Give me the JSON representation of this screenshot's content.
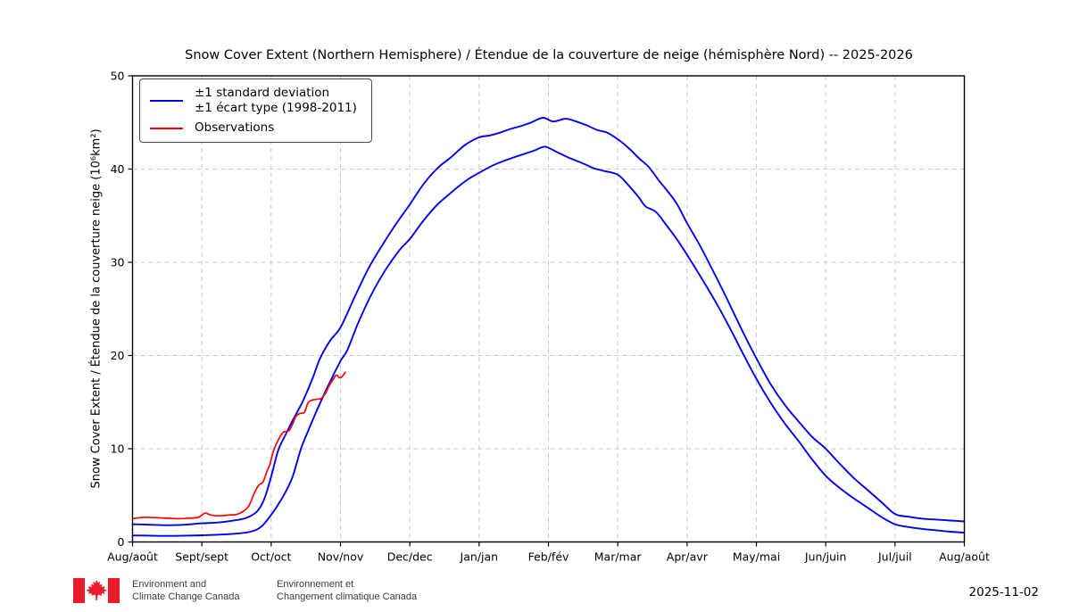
{
  "chart_data": {
    "type": "line",
    "title": "Snow Cover Extent (Northern Hemisphere) / Étendue de la couverture de neige (hémisphère Nord) -- 2025-2026",
    "ylabel": "Snow Cover Extent / Étendue de la couverture neige (10⁶km²)",
    "xlabel": "",
    "xlim": [
      0,
      12
    ],
    "ylim": [
      0,
      50
    ],
    "y_ticks": [
      0,
      10,
      20,
      30,
      40,
      50
    ],
    "x_ticks": [
      0,
      1,
      2,
      3,
      4,
      5,
      6,
      7,
      8,
      9,
      10,
      11,
      12
    ],
    "x_tick_labels": [
      "Aug/août",
      "Sept/sept",
      "Oct/oct",
      "Nov/nov",
      "Dec/dec",
      "Jan/jan",
      "Feb/fév",
      "Mar/mar",
      "Apr/avr",
      "May/mai",
      "Jun/juin",
      "Jul/juil",
      "Aug/août"
    ],
    "grid": "dashed",
    "legend_position": "upper-left",
    "legend": [
      {
        "label_line1": "±1 standard deviation",
        "label_line2": "±1 écart type (1998-2011)",
        "color": "#0000f0",
        "series": "std_band"
      },
      {
        "label_line1": "Observations",
        "label_line2": "",
        "color": "#ff0000",
        "series": "observations"
      }
    ],
    "series": [
      {
        "name": "mean_plus_1sd",
        "color": "#0000f0",
        "points": [
          [
            0,
            1.9
          ],
          [
            0.25,
            1.85
          ],
          [
            0.5,
            1.8
          ],
          [
            0.75,
            1.85
          ],
          [
            1,
            2.0
          ],
          [
            1.25,
            2.1
          ],
          [
            1.5,
            2.35
          ],
          [
            1.65,
            2.6
          ],
          [
            1.8,
            3.3
          ],
          [
            1.9,
            4.6
          ],
          [
            2.0,
            7.0
          ],
          [
            2.1,
            9.8
          ],
          [
            2.2,
            11.4
          ],
          [
            2.3,
            12.9
          ],
          [
            2.45,
            15.0
          ],
          [
            2.6,
            17.6
          ],
          [
            2.7,
            19.6
          ],
          [
            2.85,
            21.6
          ],
          [
            3.0,
            23.0
          ],
          [
            3.2,
            26.2
          ],
          [
            3.4,
            29.3
          ],
          [
            3.6,
            31.8
          ],
          [
            3.8,
            34.1
          ],
          [
            4.0,
            36.2
          ],
          [
            4.2,
            38.4
          ],
          [
            4.4,
            40.1
          ],
          [
            4.6,
            41.3
          ],
          [
            4.8,
            42.6
          ],
          [
            5.0,
            43.4
          ],
          [
            5.15,
            43.6
          ],
          [
            5.3,
            43.9
          ],
          [
            5.45,
            44.3
          ],
          [
            5.6,
            44.6
          ],
          [
            5.75,
            45.0
          ],
          [
            5.92,
            45.5
          ],
          [
            6.07,
            45.1
          ],
          [
            6.25,
            45.4
          ],
          [
            6.4,
            45.1
          ],
          [
            6.55,
            44.7
          ],
          [
            6.7,
            44.2
          ],
          [
            6.85,
            43.9
          ],
          [
            7.0,
            43.2
          ],
          [
            7.15,
            42.3
          ],
          [
            7.3,
            41.2
          ],
          [
            7.45,
            40.2
          ],
          [
            7.6,
            38.7
          ],
          [
            7.7,
            37.8
          ],
          [
            7.85,
            36.3
          ],
          [
            8.0,
            34.2
          ],
          [
            8.2,
            31.6
          ],
          [
            8.4,
            28.7
          ],
          [
            8.6,
            25.7
          ],
          [
            8.8,
            22.6
          ],
          [
            9.0,
            19.7
          ],
          [
            9.2,
            17.0
          ],
          [
            9.4,
            14.8
          ],
          [
            9.6,
            13.0
          ],
          [
            9.8,
            11.3
          ],
          [
            10.0,
            10.0
          ],
          [
            10.2,
            8.4
          ],
          [
            10.4,
            6.9
          ],
          [
            10.6,
            5.6
          ],
          [
            10.8,
            4.3
          ],
          [
            11.0,
            3.0
          ],
          [
            11.2,
            2.7
          ],
          [
            11.4,
            2.5
          ],
          [
            11.6,
            2.4
          ],
          [
            11.8,
            2.3
          ],
          [
            12,
            2.2
          ]
        ]
      },
      {
        "name": "mean_minus_1sd",
        "color": "#0000f0",
        "points": [
          [
            0,
            0.7
          ],
          [
            0.25,
            0.68
          ],
          [
            0.5,
            0.65
          ],
          [
            0.75,
            0.68
          ],
          [
            1,
            0.72
          ],
          [
            1.25,
            0.78
          ],
          [
            1.5,
            0.9
          ],
          [
            1.7,
            1.1
          ],
          [
            1.85,
            1.6
          ],
          [
            2.0,
            2.9
          ],
          [
            2.15,
            4.6
          ],
          [
            2.3,
            6.8
          ],
          [
            2.43,
            10.0
          ],
          [
            2.55,
            12.2
          ],
          [
            2.7,
            14.8
          ],
          [
            2.85,
            17.2
          ],
          [
            3.0,
            19.4
          ],
          [
            3.1,
            20.6
          ],
          [
            3.25,
            23.4
          ],
          [
            3.45,
            26.6
          ],
          [
            3.65,
            29.2
          ],
          [
            3.85,
            31.3
          ],
          [
            4.0,
            32.5
          ],
          [
            4.2,
            34.5
          ],
          [
            4.4,
            36.2
          ],
          [
            4.6,
            37.5
          ],
          [
            4.8,
            38.7
          ],
          [
            5.0,
            39.6
          ],
          [
            5.2,
            40.4
          ],
          [
            5.4,
            41.0
          ],
          [
            5.6,
            41.5
          ],
          [
            5.8,
            42.0
          ],
          [
            5.95,
            42.4
          ],
          [
            6.1,
            41.9
          ],
          [
            6.3,
            41.2
          ],
          [
            6.5,
            40.6
          ],
          [
            6.65,
            40.1
          ],
          [
            6.8,
            39.8
          ],
          [
            7.0,
            39.4
          ],
          [
            7.15,
            38.3
          ],
          [
            7.3,
            37.0
          ],
          [
            7.4,
            36.0
          ],
          [
            7.55,
            35.4
          ],
          [
            7.7,
            34.0
          ],
          [
            7.85,
            32.5
          ],
          [
            8.0,
            30.8
          ],
          [
            8.2,
            28.4
          ],
          [
            8.4,
            25.9
          ],
          [
            8.6,
            23.2
          ],
          [
            8.8,
            20.3
          ],
          [
            9.0,
            17.5
          ],
          [
            9.2,
            15.0
          ],
          [
            9.4,
            12.8
          ],
          [
            9.6,
            10.9
          ],
          [
            9.8,
            8.9
          ],
          [
            10.0,
            7.1
          ],
          [
            10.2,
            5.8
          ],
          [
            10.4,
            4.7
          ],
          [
            10.6,
            3.7
          ],
          [
            10.8,
            2.7
          ],
          [
            11.0,
            1.9
          ],
          [
            11.2,
            1.6
          ],
          [
            11.4,
            1.4
          ],
          [
            11.6,
            1.25
          ],
          [
            11.8,
            1.1
          ],
          [
            12,
            1.0
          ]
        ]
      },
      {
        "name": "observations",
        "color": "#ff0000",
        "points": [
          [
            0,
            2.5
          ],
          [
            0.1,
            2.6
          ],
          [
            0.2,
            2.65
          ],
          [
            0.35,
            2.6
          ],
          [
            0.5,
            2.55
          ],
          [
            0.65,
            2.5
          ],
          [
            0.8,
            2.55
          ],
          [
            0.95,
            2.65
          ],
          [
            1.05,
            3.1
          ],
          [
            1.12,
            2.9
          ],
          [
            1.25,
            2.8
          ],
          [
            1.4,
            2.9
          ],
          [
            1.5,
            2.95
          ],
          [
            1.6,
            3.3
          ],
          [
            1.68,
            3.9
          ],
          [
            1.76,
            5.3
          ],
          [
            1.82,
            6.1
          ],
          [
            1.88,
            6.4
          ],
          [
            1.94,
            7.6
          ],
          [
            1.98,
            8.3
          ],
          [
            2.03,
            9.7
          ],
          [
            2.08,
            10.6
          ],
          [
            2.13,
            11.3
          ],
          [
            2.18,
            11.8
          ],
          [
            2.25,
            11.9
          ],
          [
            2.3,
            12.5
          ],
          [
            2.36,
            13.5
          ],
          [
            2.42,
            13.8
          ],
          [
            2.48,
            13.9
          ],
          [
            2.53,
            14.9
          ],
          [
            2.58,
            15.2
          ],
          [
            2.65,
            15.3
          ],
          [
            2.72,
            15.4
          ],
          [
            2.78,
            15.9
          ],
          [
            2.84,
            16.8
          ],
          [
            2.9,
            17.5
          ],
          [
            2.94,
            17.9
          ],
          [
            2.99,
            17.6
          ],
          [
            3.03,
            17.8
          ],
          [
            3.07,
            18.2
          ]
        ]
      }
    ]
  },
  "colors": {
    "std_line": "#0000f0",
    "obs_line": "#ff0000",
    "grid": "#c9c9c9",
    "spine": "#000000",
    "flag_red": "#ea1b2c",
    "wordmark_text": "#3d3d3d"
  },
  "footer": {
    "wordmark_en_line1": "Environment and",
    "wordmark_en_line2": "Climate Change Canada",
    "wordmark_fr_line1": "Environnement et",
    "wordmark_fr_line2": "Changement climatique Canada",
    "date": "2025-11-02"
  }
}
